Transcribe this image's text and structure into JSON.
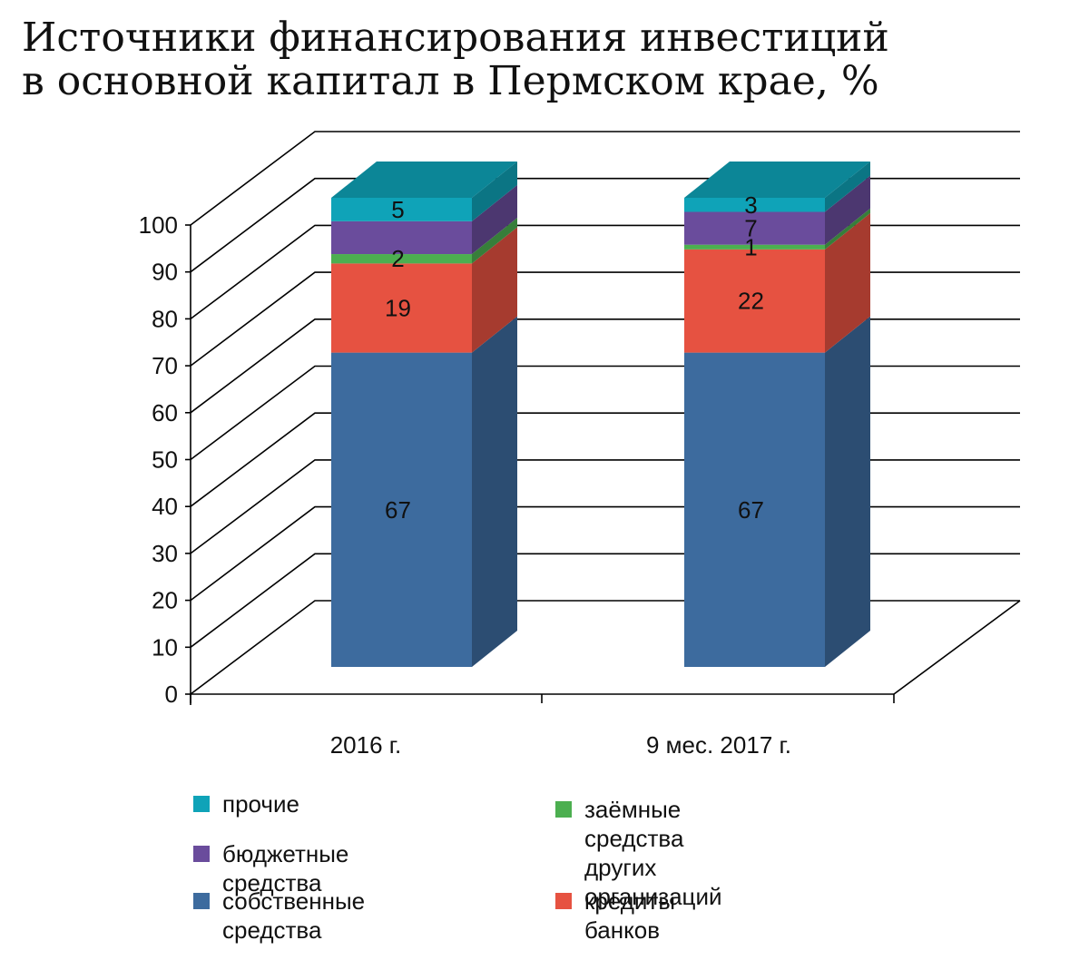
{
  "chart_data": {
    "type": "bar",
    "subtype": "stacked-3d",
    "title": "Источники финансирования инвестиций\nв основной капитал в Пермском крае, %",
    "categories": [
      "2016 г.",
      "9 мес. 2017 г."
    ],
    "ylim": [
      0,
      100
    ],
    "yticks": [
      0,
      10,
      20,
      30,
      40,
      50,
      60,
      70,
      80,
      90,
      100
    ],
    "grid": true,
    "legend_position": "bottom",
    "series": [
      {
        "name": "собственные средства",
        "values": [
          67,
          67
        ],
        "color": "#3D6B9E",
        "labels": [
          "67",
          "67"
        ]
      },
      {
        "name": "кредиты банков",
        "values": [
          19,
          22
        ],
        "color": "#E65241",
        "labels": [
          "19",
          "22"
        ]
      },
      {
        "name": "заёмные средства других\nорганизаций",
        "values": [
          2,
          1
        ],
        "color": "#4CAF50",
        "labels": [
          "2",
          "1"
        ]
      },
      {
        "name": "бюджетные средства",
        "values": [
          7,
          7
        ],
        "color": "#6A4C9C",
        "labels": [
          "",
          "7"
        ]
      },
      {
        "name": "прочие",
        "values": [
          5,
          3
        ],
        "color": "#0FA3B8",
        "labels": [
          "5",
          "3"
        ]
      }
    ]
  }
}
